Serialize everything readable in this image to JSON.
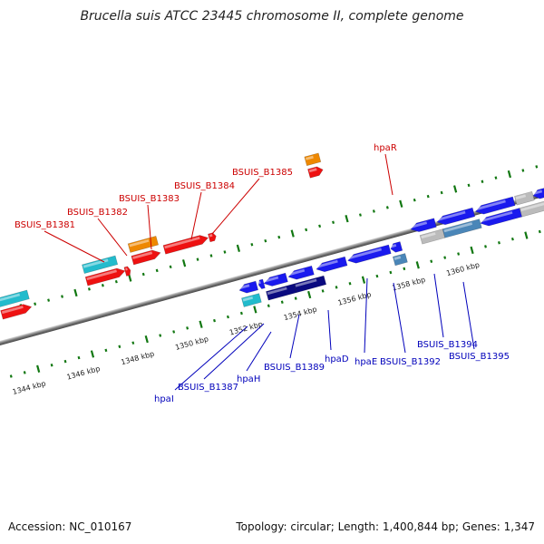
{
  "title": "Brucella suis ATCC 23445 chromosome II, complete genome",
  "footer": {
    "accession": "Accession: NC_010167",
    "summary": "Topology: circular; Length: 1,400,844 bp; Genes: 1,347"
  },
  "colors": {
    "red_genes": "#ee1111",
    "orange_genes": "#ee8800",
    "cyan_genes": "#22bbcc",
    "blue_genes": "#1a1aee",
    "navy_genes": "#0a0a80",
    "grey_genes": "#bbbbbb",
    "steel_genes": "#4a86b8",
    "axis_grey": "#888888",
    "tick_green": "#117711",
    "label_red": "#cc0000",
    "label_blue": "#0000bb"
  },
  "scale": {
    "labels": [
      "1344 kbp",
      "1346 kbp",
      "1348 kbp",
      "1350 kbp",
      "1352 kbp",
      "1354 kbp",
      "1356 kbp",
      "1358 kbp",
      "1360 kbp"
    ]
  },
  "labels": {
    "red": [
      "BSUIS_B1381",
      "BSUIS_B1382",
      "BSUIS_B1383",
      "BSUIS_B1384",
      "BSUIS_B1385",
      "hpaR"
    ],
    "blue": [
      "hpaI",
      "BSUIS_B1387",
      "hpaH",
      "BSUIS_B1389",
      "hpaD",
      "hpaE",
      "BSUIS_B1392",
      "BSUIS_B1394",
      "BSUIS_B1395"
    ]
  }
}
